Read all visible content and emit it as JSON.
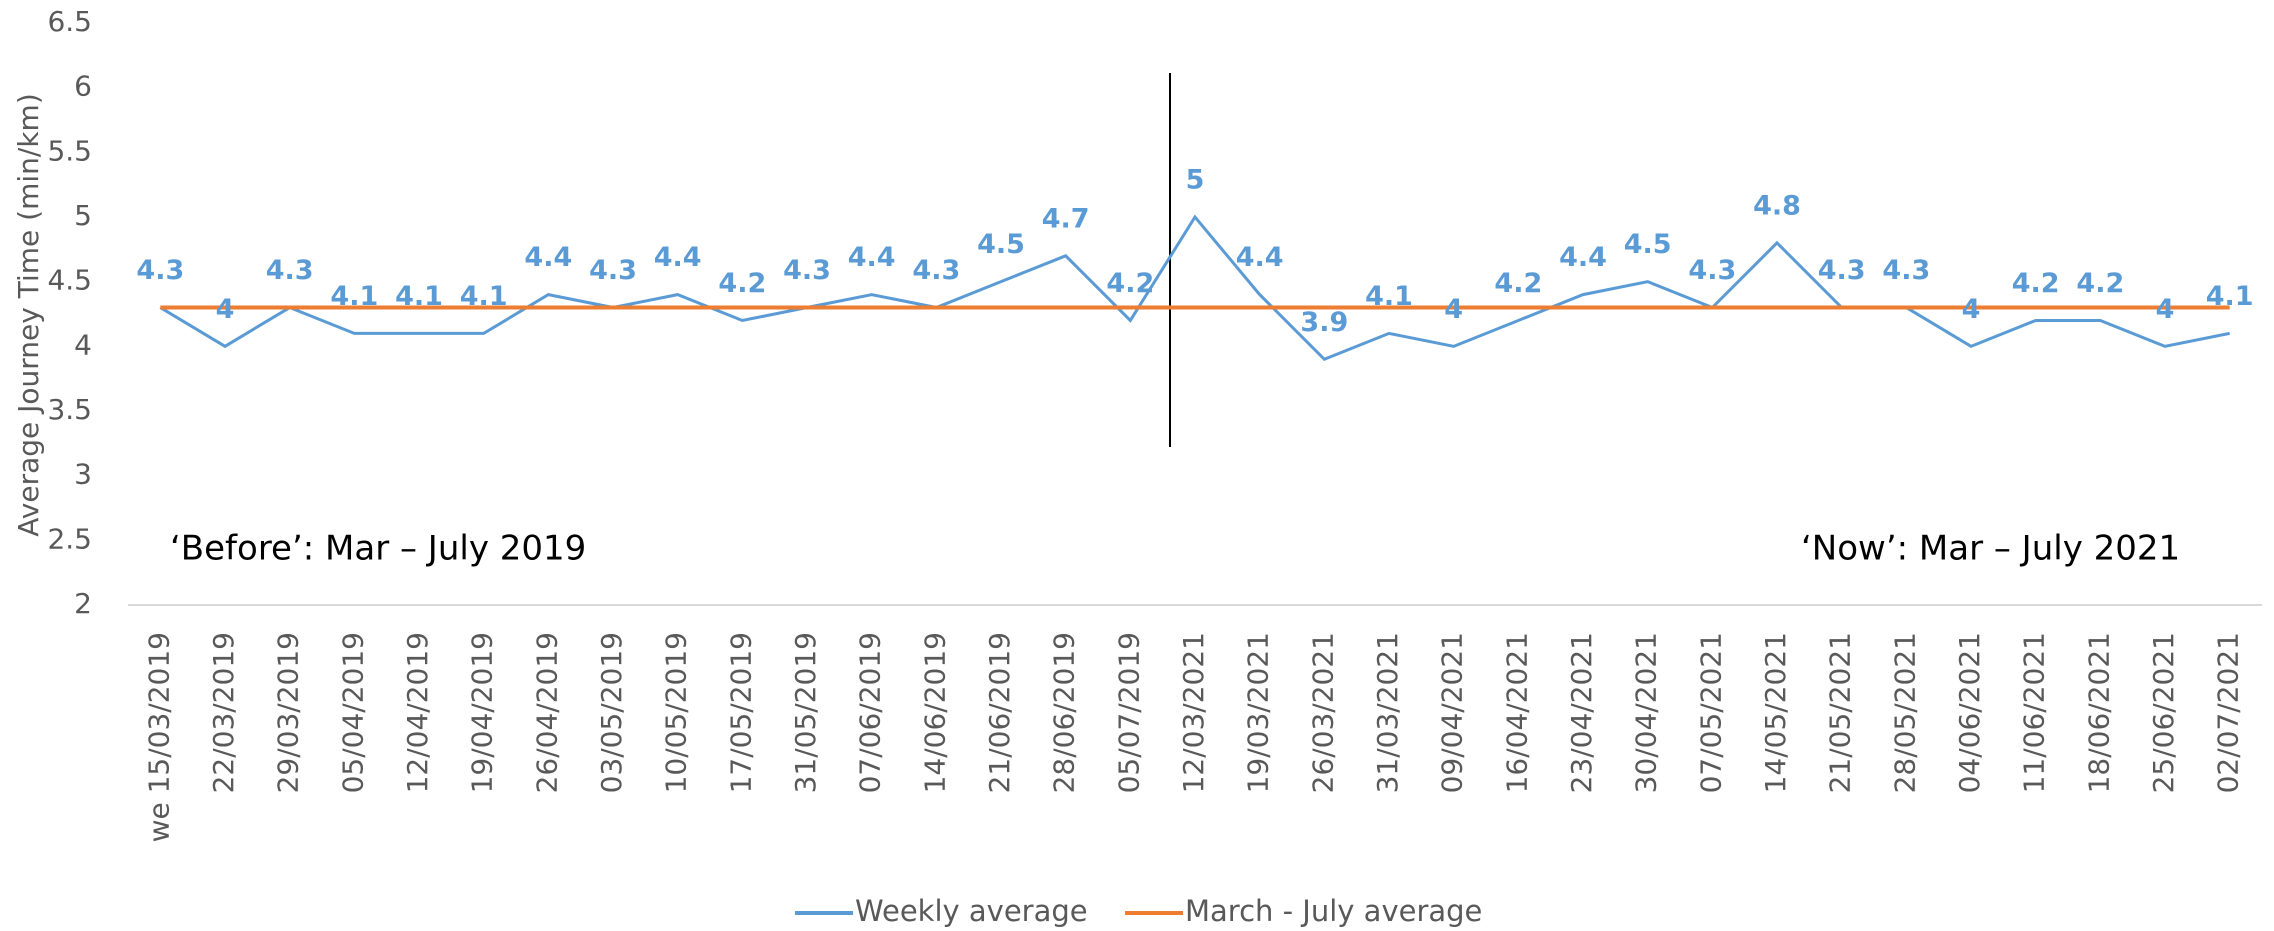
{
  "chart_data": {
    "type": "line",
    "y_label": "Average Journey Time  (min/km)",
    "categories": [
      "we 15/03/2019",
      "22/03/2019",
      "29/03/2019",
      "05/04/2019",
      "12/04/2019",
      "19/04/2019",
      "26/04/2019",
      "03/05/2019",
      "10/05/2019",
      "17/05/2019",
      "31/05/2019",
      "07/06/2019",
      "14/06/2019",
      "21/06/2019",
      "28/06/2019",
      "05/07/2019",
      "12/03/2021",
      "19/03/2021",
      "26/03/2021",
      "31/03/2021",
      "09/04/2021",
      "16/04/2021",
      "23/04/2021",
      "30/04/2021",
      "07/05/2021",
      "14/05/2021",
      "21/05/2021",
      "28/05/2021",
      "04/06/2021",
      "11/06/2021",
      "18/06/2021",
      "25/06/2021",
      "02/07/2021"
    ],
    "series": [
      {
        "name": "Weekly average",
        "color": "#5b9bd5",
        "show_labels": true,
        "values": [
          4.3,
          4,
          4.3,
          4.1,
          4.1,
          4.1,
          4.4,
          4.3,
          4.4,
          4.2,
          4.3,
          4.4,
          4.3,
          4.5,
          4.7,
          4.2,
          5,
          4.4,
          3.9,
          4.1,
          4,
          4.2,
          4.4,
          4.5,
          4.3,
          4.8,
          4.3,
          4.3,
          4,
          4.2,
          4.2,
          4,
          4.1
        ]
      },
      {
        "name": "March - July average",
        "color": "#ed7d31",
        "show_labels": false,
        "values": [
          4.3,
          4.3,
          4.3,
          4.3,
          4.3,
          4.3,
          4.3,
          4.3,
          4.3,
          4.3,
          4.3,
          4.3,
          4.3,
          4.3,
          4.3,
          4.3,
          4.3,
          4.3,
          4.3,
          4.3,
          4.3,
          4.3,
          4.3,
          4.3,
          4.3,
          4.3,
          4.3,
          4.3,
          4.3,
          4.3,
          4.3,
          4.3,
          4.3
        ]
      }
    ],
    "ylim": [
      2,
      6.5
    ],
    "yticks": [
      2,
      2.5,
      3,
      3.5,
      4,
      4.5,
      5,
      5.5,
      6,
      6.5
    ],
    "annotations": [
      "‘Before’: Mar – July 2019",
      "‘Now’: Mar – July 2021"
    ],
    "grid": false,
    "legend": "bottom"
  }
}
